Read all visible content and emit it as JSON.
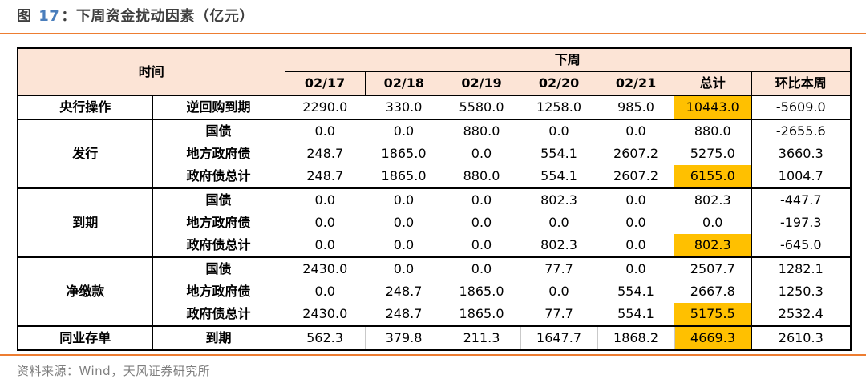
{
  "title": {
    "fig_label": "图",
    "fig_number": "17",
    "separator": "：",
    "text": "下周资金扰动因素（亿元）"
  },
  "colors": {
    "header_bg": "#fce4d6",
    "highlight": "#ffc000",
    "rule": "#ed7d31",
    "title_accent": "#4a7ebc",
    "title_text": "#3f3f3f",
    "source_text": "#7f7f7f",
    "border": "#000000"
  },
  "table": {
    "corner_header": "时间",
    "group_header": "下周",
    "date_headers": [
      "02/17",
      "02/18",
      "02/19",
      "02/20",
      "02/21"
    ],
    "total_header": "总计",
    "wow_header": "环比本周",
    "groups": [
      {
        "label": "央行操作",
        "rows": [
          {
            "sub": "逆回购到期",
            "values": [
              "2290.0",
              "330.0",
              "5580.0",
              "1258.0",
              "985.0"
            ],
            "total": "10443.0",
            "total_highlight": true,
            "wow": "-5609.0"
          }
        ]
      },
      {
        "label": "发行",
        "rows": [
          {
            "sub": "国债",
            "values": [
              "0.0",
              "0.0",
              "880.0",
              "0.0",
              "0.0"
            ],
            "total": "880.0",
            "total_highlight": false,
            "wow": "-2655.6"
          },
          {
            "sub": "地方政府债",
            "values": [
              "248.7",
              "1865.0",
              "0.0",
              "554.1",
              "2607.2"
            ],
            "total": "5275.0",
            "total_highlight": false,
            "wow": "3660.3"
          },
          {
            "sub": "政府债总计",
            "values": [
              "248.7",
              "1865.0",
              "880.0",
              "554.1",
              "2607.2"
            ],
            "total": "6155.0",
            "total_highlight": true,
            "wow": "1004.7"
          }
        ]
      },
      {
        "label": "到期",
        "rows": [
          {
            "sub": "国债",
            "values": [
              "0.0",
              "0.0",
              "0.0",
              "802.3",
              "0.0"
            ],
            "total": "802.3",
            "total_highlight": false,
            "wow": "-447.7"
          },
          {
            "sub": "地方政府债",
            "values": [
              "0.0",
              "0.0",
              "0.0",
              "0.0",
              "0.0"
            ],
            "total": "0.0",
            "total_highlight": false,
            "wow": "-197.3"
          },
          {
            "sub": "政府债总计",
            "values": [
              "0.0",
              "0.0",
              "0.0",
              "802.3",
              "0.0"
            ],
            "total": "802.3",
            "total_highlight": true,
            "wow": "-645.0"
          }
        ]
      },
      {
        "label": "净缴款",
        "rows": [
          {
            "sub": "国债",
            "values": [
              "2430.0",
              "0.0",
              "0.0",
              "77.7",
              "0.0"
            ],
            "total": "2507.7",
            "total_highlight": false,
            "wow": "1282.1"
          },
          {
            "sub": "地方政府债",
            "values": [
              "0.0",
              "248.7",
              "1865.0",
              "0.0",
              "554.1"
            ],
            "total": "2667.8",
            "total_highlight": false,
            "wow": "1250.3"
          },
          {
            "sub": "政府债总计",
            "values": [
              "2430.0",
              "248.7",
              "1865.0",
              "77.7",
              "554.1"
            ],
            "total": "5175.5",
            "total_highlight": true,
            "wow": "2532.4"
          }
        ]
      },
      {
        "label": "同业存单",
        "rows": [
          {
            "sub": "到期",
            "values": [
              "562.3",
              "379.8",
              "211.3",
              "1647.7",
              "1868.2"
            ],
            "total": "4669.3",
            "total_highlight": true,
            "wow": "2610.3"
          }
        ]
      }
    ]
  },
  "footer": {
    "source": "资料来源：Wind，天风证券研究所"
  },
  "chart_data": {
    "type": "table",
    "title": "图 17：下周资金扰动因素（亿元）",
    "columns": [
      "时间·类别",
      "时间·科目",
      "02/17",
      "02/18",
      "02/19",
      "02/20",
      "02/21",
      "总计",
      "环比本周"
    ],
    "column_group": {
      "label": "下周",
      "spans": [
        "02/17",
        "02/18",
        "02/19",
        "02/20",
        "02/21",
        "总计",
        "环比本周"
      ]
    },
    "rows": [
      [
        "央行操作",
        "逆回购到期",
        2290.0,
        330.0,
        5580.0,
        1258.0,
        985.0,
        10443.0,
        -5609.0
      ],
      [
        "发行",
        "国债",
        0.0,
        0.0,
        880.0,
        0.0,
        0.0,
        880.0,
        -2655.6
      ],
      [
        "发行",
        "地方政府债",
        248.7,
        1865.0,
        0.0,
        554.1,
        2607.2,
        5275.0,
        3660.3
      ],
      [
        "发行",
        "政府债总计",
        248.7,
        1865.0,
        880.0,
        554.1,
        2607.2,
        6155.0,
        1004.7
      ],
      [
        "到期",
        "国债",
        0.0,
        0.0,
        0.0,
        802.3,
        0.0,
        802.3,
        -447.7
      ],
      [
        "到期",
        "地方政府债",
        0.0,
        0.0,
        0.0,
        0.0,
        0.0,
        0.0,
        -197.3
      ],
      [
        "到期",
        "政府债总计",
        0.0,
        0.0,
        0.0,
        802.3,
        0.0,
        802.3,
        -645.0
      ],
      [
        "净缴款",
        "国债",
        2430.0,
        0.0,
        0.0,
        77.7,
        0.0,
        2507.7,
        1282.1
      ],
      [
        "净缴款",
        "地方政府债",
        0.0,
        248.7,
        1865.0,
        0.0,
        554.1,
        2667.8,
        1250.3
      ],
      [
        "净缴款",
        "政府债总计",
        2430.0,
        248.7,
        1865.0,
        77.7,
        554.1,
        5175.5,
        2532.4
      ],
      [
        "同业存单",
        "到期",
        562.3,
        379.8,
        211.3,
        1647.7,
        1868.2,
        4669.3,
        2610.3
      ]
    ],
    "highlighted_totals": [
      10443.0,
      6155.0,
      802.3,
      5175.5,
      4669.3
    ],
    "highlight_color": "#ffc000",
    "source": "资料来源：Wind，天风证券研究所"
  }
}
